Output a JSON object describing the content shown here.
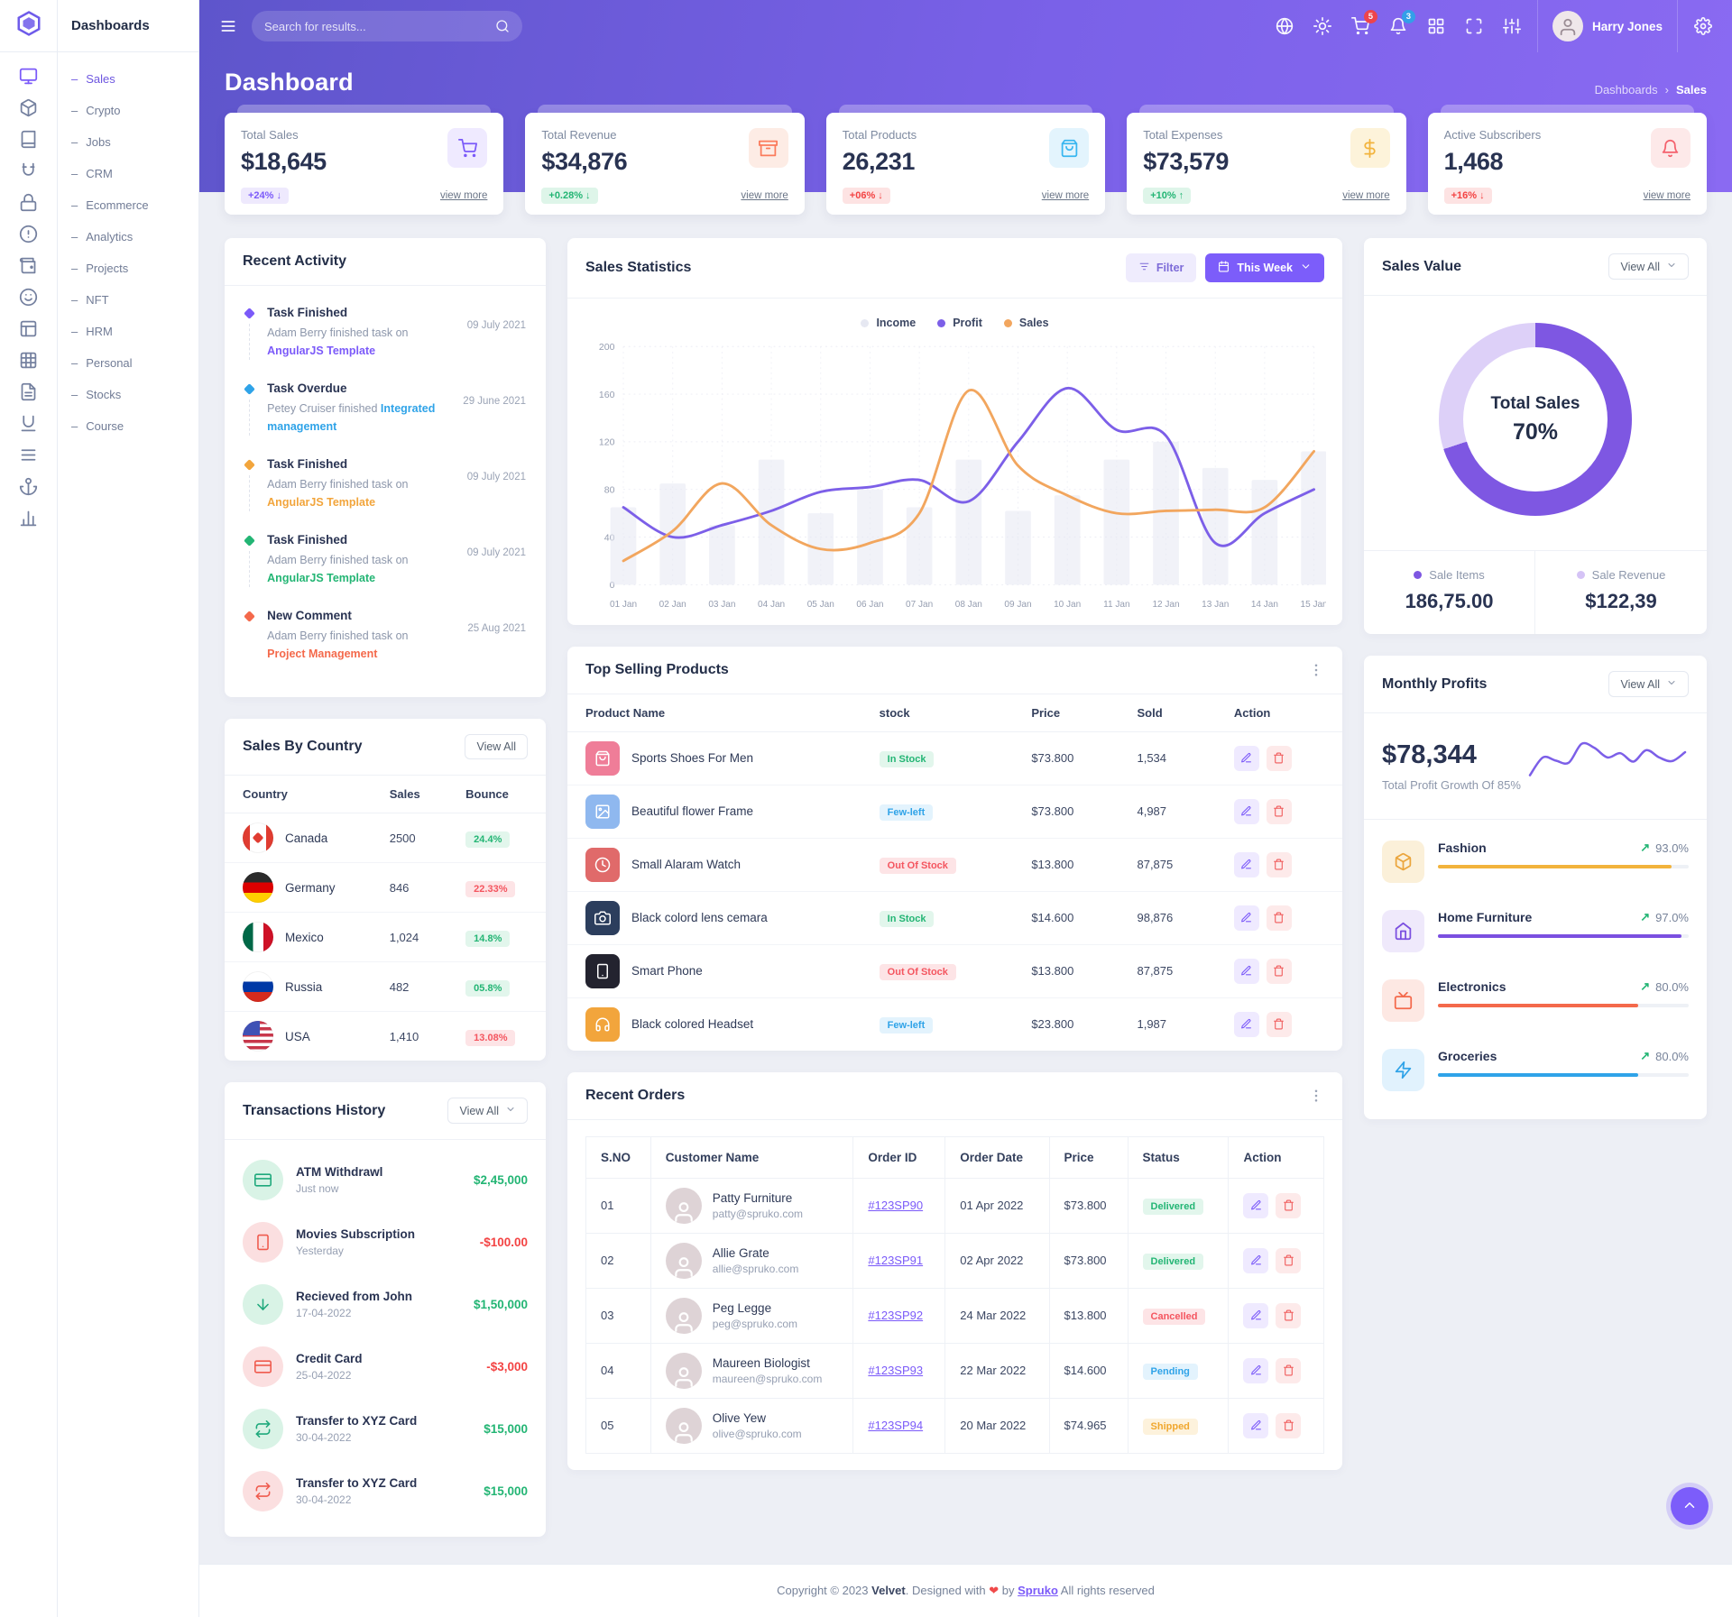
{
  "theme": {
    "primary": "#7b5af9",
    "green": "#23b574",
    "red": "#f34343",
    "orange": "#f2a53c",
    "blue": "#2fa3e8",
    "gradient_start": "#5e55cb",
    "gradient_end": "#8a6af2"
  },
  "sidebar": {
    "title": "Dashboards",
    "rail": [
      "monitor",
      "box",
      "book",
      "magnet",
      "lock",
      "alert",
      "wallet",
      "smile",
      "layout",
      "table",
      "file",
      "underline",
      "list",
      "anchor",
      "chart"
    ],
    "items": [
      {
        "label": "Sales",
        "active": true
      },
      {
        "label": "Crypto"
      },
      {
        "label": "Jobs"
      },
      {
        "label": "CRM"
      },
      {
        "label": "Ecommerce"
      },
      {
        "label": "Analytics"
      },
      {
        "label": "Projects"
      },
      {
        "label": "NFT"
      },
      {
        "label": "HRM"
      },
      {
        "label": "Personal"
      },
      {
        "label": "Stocks"
      },
      {
        "label": "Course"
      }
    ]
  },
  "header": {
    "search_placeholder": "Search for results...",
    "icons": [
      {
        "icon": "globe",
        "name": "language-globe"
      },
      {
        "icon": "sun",
        "name": "theme-toggle"
      },
      {
        "icon": "cart",
        "name": "shopping-cart",
        "badge": "5",
        "badge_color": "#f34343"
      },
      {
        "icon": "bell",
        "name": "notifications",
        "badge": "3",
        "badge_color": "#2fa3e8"
      },
      {
        "icon": "grid4",
        "name": "apps-grid"
      },
      {
        "icon": "expand",
        "name": "fullscreen"
      },
      {
        "icon": "sliders",
        "name": "settings-sliders"
      }
    ],
    "user_name": "Harry Jones"
  },
  "page": {
    "title": "Dashboard",
    "breadcrumb_parent": "Dashboards",
    "breadcrumb_current": "Sales"
  },
  "stats": [
    {
      "label": "Total Sales",
      "value": "$18,645",
      "delta": "+24%",
      "arrow": "↓",
      "pill_bg": "#eee9fd",
      "pill_color": "#7b5af9",
      "icon": "cart",
      "chip_bg": "#efeaff",
      "chip_color": "#7b5af9",
      "view_more": "view more"
    },
    {
      "label": "Total Revenue",
      "value": "$34,876",
      "delta": "+0.28%",
      "arrow": "↓",
      "pill_bg": "#def5e9",
      "pill_color": "#23b574",
      "icon": "archive",
      "chip_bg": "#fdece5",
      "chip_color": "#fb7b5c",
      "view_more": "view more"
    },
    {
      "label": "Total Products",
      "value": "26,231",
      "delta": "+06%",
      "arrow": "↓",
      "pill_bg": "#fde3e3",
      "pill_color": "#f34343",
      "icon": "bag",
      "chip_bg": "#e3f4fd",
      "chip_color": "#38b6f0",
      "view_more": "view more"
    },
    {
      "label": "Total Expenses",
      "value": "$73,579",
      "delta": "+10%",
      "arrow": "↑",
      "pill_bg": "#def5e9",
      "pill_color": "#23b574",
      "icon": "dollar",
      "chip_bg": "#fdf3da",
      "chip_color": "#f2b33c",
      "view_more": "view more"
    },
    {
      "label": "Active Subscribers",
      "value": "1,468",
      "delta": "+16%",
      "arrow": "↓",
      "pill_bg": "#fde3e3",
      "pill_color": "#f34343",
      "icon": "bell",
      "chip_bg": "#fde9e9",
      "chip_color": "#f4616d",
      "view_more": "view more"
    }
  ],
  "recent_activity": {
    "title": "Recent Activity",
    "items": [
      {
        "title": "Task Finished",
        "text": "Adam Berry finished task on ",
        "link": "AngularJS Template",
        "color": "#7b5af9",
        "date": "09 July 2021"
      },
      {
        "title": "Task Overdue",
        "text": "Petey Cruiser finished ",
        "link": "Integrated management",
        "color": "#2fa3e8",
        "date": "29 June 2021"
      },
      {
        "title": "Task Finished",
        "text": "Adam Berry finished task on ",
        "link": "AngularJS Template",
        "color": "#f2a53c",
        "date": "09 July 2021"
      },
      {
        "title": "Task Finished",
        "text": "Adam Berry finished task on ",
        "link": "AngularJS Template",
        "color": "#23b574",
        "date": "09 July 2021"
      },
      {
        "title": "New Comment",
        "text": "Adam Berry finished task on ",
        "link": "Project Management",
        "color": "#f4694b",
        "date": "25 Aug 2021"
      }
    ]
  },
  "sales_statistics": {
    "title": "Sales Statistics",
    "filter_label": "Filter",
    "period_label": "This Week",
    "chart_data": {
      "type": "line+bar",
      "x": [
        "01 Jan",
        "02 Jan",
        "03 Jan",
        "04 Jan",
        "05 Jan",
        "06 Jan",
        "07 Jan",
        "08 Jan",
        "09 Jan",
        "10 Jan",
        "11 Jan",
        "12 Jan",
        "13 Jan",
        "14 Jan",
        "15 Jan"
      ],
      "series": [
        {
          "name": "Income",
          "type": "bar",
          "color": "#e6e8f2",
          "values": [
            65,
            85,
            50,
            105,
            60,
            80,
            65,
            105,
            62,
            75,
            105,
            120,
            98,
            88,
            112
          ]
        },
        {
          "name": "Profit",
          "type": "line",
          "color": "#7c5fe8",
          "values": [
            65,
            40,
            50,
            62,
            78,
            82,
            88,
            70,
            120,
            165,
            130,
            125,
            35,
            60,
            80
          ]
        },
        {
          "name": "Sales",
          "type": "line",
          "color": "#f2a65e",
          "values": [
            20,
            45,
            85,
            50,
            30,
            35,
            60,
            163,
            100,
            75,
            60,
            62,
            63,
            65,
            112
          ]
        }
      ],
      "ylim": [
        0,
        200
      ],
      "yticks": [
        0,
        40,
        80,
        120,
        160,
        200
      ],
      "grid": true,
      "legend_position": "top"
    }
  },
  "sales_by_country": {
    "title": "Sales By Country",
    "view_all": "View All",
    "columns": [
      "Country",
      "Sales",
      "Bounce"
    ],
    "rows": [
      {
        "country": "Canada",
        "flag": "canada",
        "sales": "2500",
        "bounce": "24.4%",
        "tone": "green"
      },
      {
        "country": "Germany",
        "flag": "germany",
        "sales": "846",
        "bounce": "22.33%",
        "tone": "red"
      },
      {
        "country": "Mexico",
        "flag": "mexico",
        "sales": "1,024",
        "bounce": "14.8%",
        "tone": "green"
      },
      {
        "country": "Russia",
        "flag": "russia",
        "sales": "482",
        "bounce": "05.8%",
        "tone": "green"
      },
      {
        "country": "USA",
        "flag": "usa",
        "sales": "1,410",
        "bounce": "13.08%",
        "tone": "red"
      }
    ]
  },
  "top_selling": {
    "title": "Top Selling Products",
    "columns": [
      "Product Name",
      "stock",
      "Price",
      "Sold",
      "Action"
    ],
    "rows": [
      {
        "name": "Sports Shoes For Men",
        "icon": "bag",
        "thumb": "#ef7d98",
        "stock": "In Stock",
        "stock_tone": "green",
        "price": "$73.800",
        "sold": "1,534"
      },
      {
        "name": "Beautiful flower Frame",
        "icon": "image",
        "thumb": "#8fb8ef",
        "stock": "Few-left",
        "stock_tone": "blue",
        "price": "$73.800",
        "sold": "4,987"
      },
      {
        "name": "Small Alaram Watch",
        "icon": "clock",
        "thumb": "#e06a6a",
        "stock": "Out Of Stock",
        "stock_tone": "red",
        "price": "$13.800",
        "sold": "87,875"
      },
      {
        "name": "Black colord lens cemara",
        "icon": "camera",
        "thumb": "#2c3e5d",
        "stock": "In Stock",
        "stock_tone": "green",
        "price": "$14.600",
        "sold": "98,876"
      },
      {
        "name": "Smart Phone",
        "icon": "smartphone",
        "thumb": "#23232f",
        "stock": "Out Of Stock",
        "stock_tone": "red",
        "price": "$13.800",
        "sold": "87,875"
      },
      {
        "name": "Black colored Headset",
        "icon": "headphones",
        "thumb": "#f2a53c",
        "stock": "Few-left",
        "stock_tone": "blue",
        "price": "$23.800",
        "sold": "1,987"
      }
    ]
  },
  "sales_value": {
    "title": "Sales Value",
    "view_all": "View All",
    "donut": {
      "label": "Total Sales",
      "percent": 70,
      "percent_label": "70%",
      "color": "#7e57e2",
      "track": "#ddd0f8"
    },
    "stats": [
      {
        "label": "Sale Items",
        "value": "186,75.00",
        "dot": "#7e57e2"
      },
      {
        "label": "Sale Revenue",
        "value": "$122,39",
        "dot": "#d5c3f6"
      }
    ]
  },
  "monthly_profits": {
    "title": "Monthly Profits",
    "view_all": "View All",
    "amount": "$78,344",
    "subtitle": "Total Profit Growth Of 85%",
    "sparkline": [
      30,
      64,
      58,
      54,
      90,
      82,
      64,
      72,
      56,
      78,
      64,
      57,
      74
    ],
    "sparkline_color": "#7c5fe8",
    "items": [
      {
        "label": "Fashion",
        "pct": "93.0%",
        "value": 93,
        "color": "#f2b33c",
        "icon": "box",
        "chip_bg": "#fbf0d9",
        "chip_color": "#eba53c"
      },
      {
        "label": "Home Furniture",
        "pct": "97.0%",
        "value": 97,
        "color": "#7b4fe0",
        "icon": "home",
        "chip_bg": "#efe9fb",
        "chip_color": "#7b4fe0"
      },
      {
        "label": "Electronics",
        "pct": "80.0%",
        "value": 80,
        "color": "#f4694b",
        "icon": "tv",
        "chip_bg": "#fde8e3",
        "chip_color": "#f4694b"
      },
      {
        "label": "Groceries",
        "pct": "80.0%",
        "value": 80,
        "color": "#2fa3e8",
        "icon": "zap",
        "chip_bg": "#e1f2fd",
        "chip_color": "#2fa3e8"
      }
    ]
  },
  "transactions": {
    "title": "Transactions History",
    "view_all": "View All",
    "items": [
      {
        "title": "ATM Withdrawl",
        "date": "Just now",
        "amount": "$2,45,000",
        "amount_color": "#23b574",
        "icon": "card",
        "tint": "green"
      },
      {
        "title": "Movies Subscription",
        "date": "Yesterday",
        "amount": "-$100.00",
        "amount_color": "#f34343",
        "icon": "phone",
        "tint": "red"
      },
      {
        "title": "Recieved from John",
        "date": "17-04-2022",
        "amount": "$1,50,000",
        "amount_color": "#23b574",
        "icon": "arrowdown",
        "tint": "green"
      },
      {
        "title": "Credit Card",
        "date": "25-04-2022",
        "amount": "-$3,000",
        "amount_color": "#f34343",
        "icon": "card",
        "tint": "red"
      },
      {
        "title": "Transfer to XYZ Card",
        "date": "30-04-2022",
        "amount": "$15,000",
        "amount_color": "#23b574",
        "icon": "repeat",
        "tint": "green"
      },
      {
        "title": "Transfer to XYZ Card",
        "date": "30-04-2022",
        "amount": "$15,000",
        "amount_color": "#23b574",
        "icon": "repeat",
        "tint": "red"
      }
    ]
  },
  "recent_orders": {
    "title": "Recent Orders",
    "columns": [
      "S.NO",
      "Customer Name",
      "Order ID",
      "Order Date",
      "Price",
      "Status",
      "Action"
    ],
    "rows": [
      {
        "sno": "01",
        "name": "Patty Furniture",
        "email": "patty@spruko.com",
        "order_id": "#123SP90",
        "date": "01 Apr 2022",
        "price": "$73.800",
        "status": "Delivered",
        "tone": "green"
      },
      {
        "sno": "02",
        "name": "Allie Grate",
        "email": "allie@spruko.com",
        "order_id": "#123SP91",
        "date": "02 Apr 2022",
        "price": "$73.800",
        "status": "Delivered",
        "tone": "green"
      },
      {
        "sno": "03",
        "name": "Peg Legge",
        "email": "peg@spruko.com",
        "order_id": "#123SP92",
        "date": "24 Mar 2022",
        "price": "$13.800",
        "status": "Cancelled",
        "tone": "red"
      },
      {
        "sno": "04",
        "name": "Maureen Biologist",
        "email": "maureen@spruko.com",
        "order_id": "#123SP93",
        "date": "22 Mar 2022",
        "price": "$14.600",
        "status": "Pending",
        "tone": "blue"
      },
      {
        "sno": "05",
        "name": "Olive Yew",
        "email": "olive@spruko.com",
        "order_id": "#123SP94",
        "date": "20 Mar 2022",
        "price": "$74.965",
        "status": "Shipped",
        "tone": "orange"
      }
    ]
  },
  "footer": {
    "prefix": "Copyright © 2023 ",
    "brand": "Velvet",
    "middle": ". Designed with ",
    "heart": "❤",
    "by": " by ",
    "link": "Spruko",
    "suffix": " All rights reserved"
  }
}
